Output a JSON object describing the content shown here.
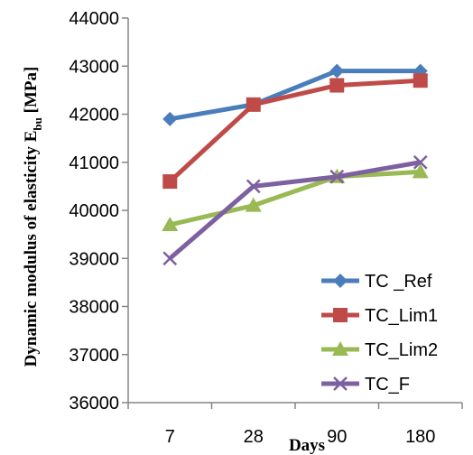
{
  "chart_data": {
    "type": "line",
    "title": "",
    "xlabel": "Days",
    "ylabel": "Dynamic modulus of elasticity E",
    "ylabel_subscript": "bu",
    "ylabel_unit": " [MPa]",
    "categories": [
      "7",
      "28",
      "90",
      "180"
    ],
    "ylim": [
      36000,
      44000
    ],
    "yticks": [
      36000,
      37000,
      38000,
      39000,
      40000,
      41000,
      42000,
      43000,
      44000
    ],
    "grid": false,
    "legend_position": "bottom-right",
    "series": [
      {
        "name": "TC _Ref",
        "color": "#4a7ebb",
        "marker": "diamond",
        "values": [
          41900,
          42200,
          42900,
          42900
        ]
      },
      {
        "name": "TC_Lim1",
        "color": "#be4b48",
        "marker": "square",
        "values": [
          40600,
          42200,
          42600,
          42700
        ]
      },
      {
        "name": "TC_Lim2",
        "color": "#98b954",
        "marker": "triangle",
        "values": [
          39700,
          40100,
          40700,
          40800
        ]
      },
      {
        "name": "TC_F",
        "color": "#7d60a0",
        "marker": "x",
        "values": [
          39000,
          40500,
          40700,
          41000
        ]
      }
    ]
  }
}
